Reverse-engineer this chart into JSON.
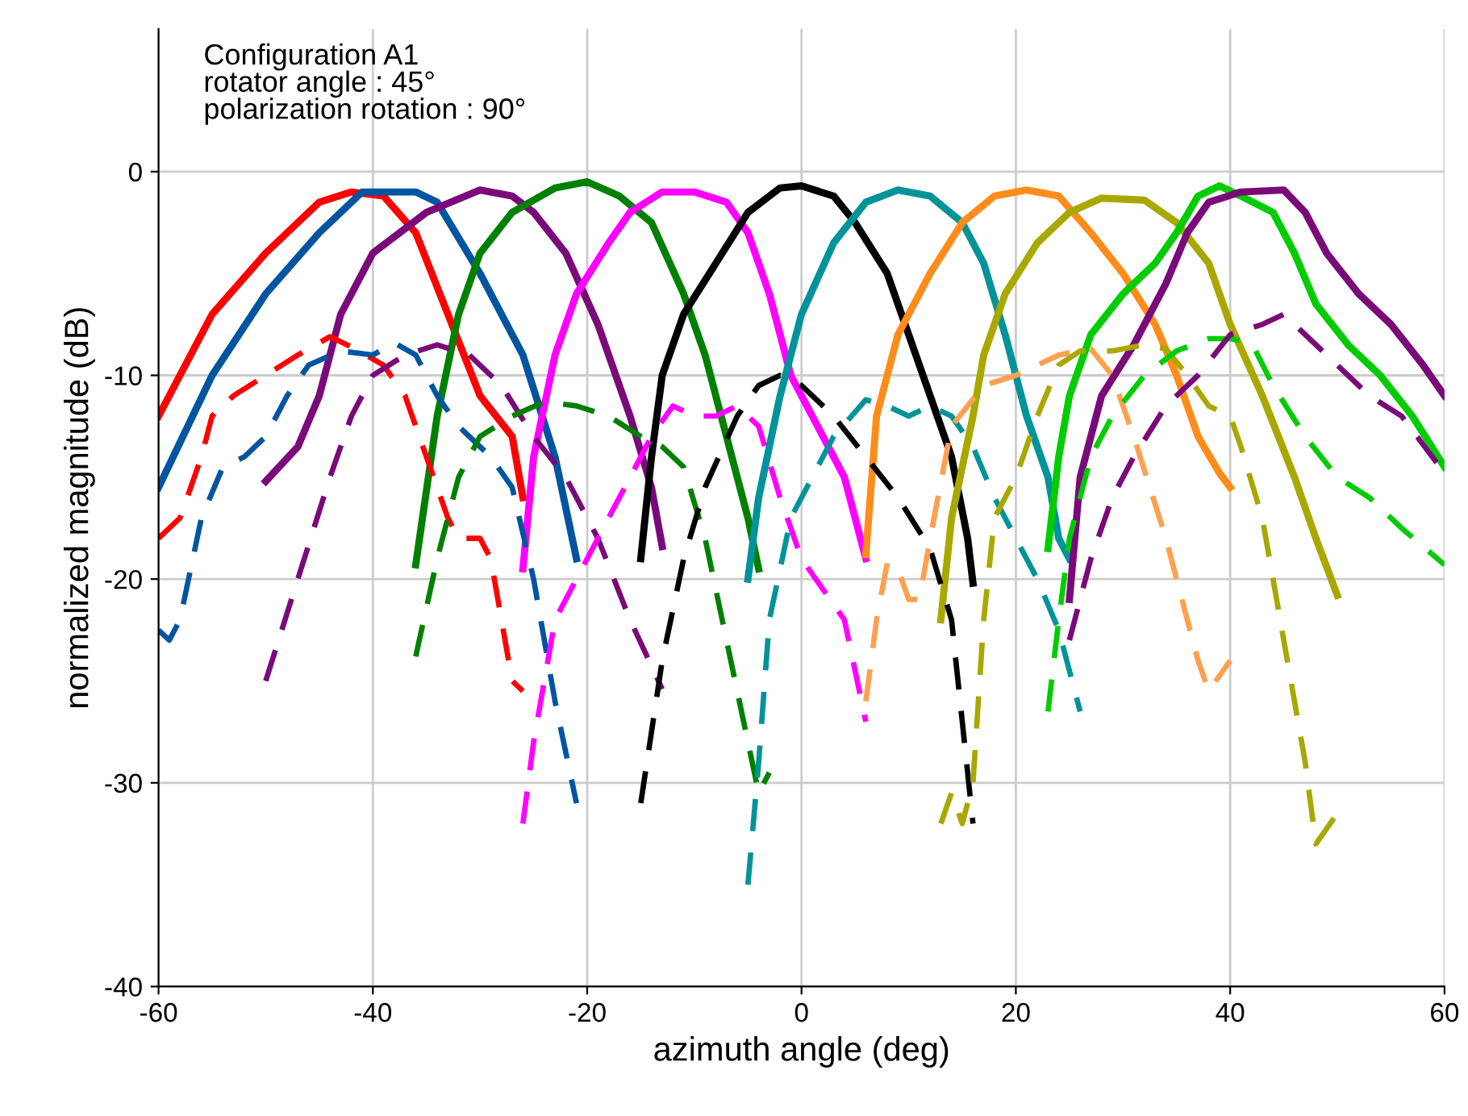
{
  "chart_data": {
    "type": "line",
    "xlabel": "azimuth angle (deg)",
    "ylabel": "normalized magnitude (dB)",
    "annotations": [
      "Configuration A1",
      "rotator angle : 45°",
      "polarization rotation : 90°"
    ],
    "xlim": [
      -60,
      60
    ],
    "xticks": [
      -60,
      -40,
      -20,
      0,
      20,
      40,
      60
    ],
    "ylim": [
      -40,
      7
    ],
    "yticks": [
      -40,
      -30,
      -20,
      -10,
      0
    ],
    "grid": true,
    "marker": "none",
    "series": [
      {
        "color": "#ff0000",
        "line_style": "solid",
        "x": [
          -60,
          -55,
          -50,
          -45,
          -42,
          -39,
          -36,
          -33,
          -30,
          -27,
          -26
        ],
        "values": [
          -12,
          -7,
          -4,
          -1.5,
          -1,
          -1.2,
          -3,
          -7,
          -11,
          -13,
          -16
        ]
      },
      {
        "color": "#0055a0",
        "line_style": "solid",
        "x": [
          -60,
          -55,
          -50,
          -45,
          -41,
          -36,
          -34,
          -30,
          -26,
          -23,
          -21
        ],
        "values": [
          -15.5,
          -10,
          -6,
          -3,
          -1,
          -1,
          -1.5,
          -5,
          -9,
          -14,
          -19
        ]
      },
      {
        "color": "#7a0a7a",
        "line_style": "solid",
        "x": [
          -50,
          -47,
          -45,
          -43,
          -40,
          -35,
          -30,
          -27,
          -25,
          -22,
          -19,
          -16,
          -14,
          -13
        ],
        "values": [
          -15.2,
          -13.5,
          -11,
          -7,
          -4,
          -2,
          -0.9,
          -1.2,
          -2,
          -4,
          -7.5,
          -12,
          -15.5,
          -18.4
        ]
      },
      {
        "color": "#008000",
        "line_style": "solid",
        "x": [
          -36,
          -34,
          -32,
          -30,
          -27,
          -23,
          -20,
          -17,
          -14,
          -11,
          -9,
          -7,
          -5,
          -4
        ],
        "values": [
          -19.3,
          -12,
          -7,
          -4,
          -2,
          -0.8,
          -0.5,
          -1.2,
          -2.5,
          -6,
          -9,
          -13,
          -17,
          -19.5
        ]
      },
      {
        "color": "#ff00ff",
        "line_style": "solid",
        "x": [
          -26,
          -25,
          -23,
          -21,
          -18,
          -16,
          -13,
          -10,
          -7,
          -5,
          -3,
          -1,
          2,
          4,
          6
        ],
        "values": [
          -19.5,
          -14,
          -9,
          -6,
          -3.5,
          -2,
          -1,
          -1,
          -1.5,
          -3,
          -6,
          -10,
          -13,
          -15,
          -19
        ]
      },
      {
        "color": "#000000",
        "line_style": "solid",
        "x": [
          -15,
          -14,
          -13,
          -11,
          -8,
          -5,
          -2,
          0,
          3,
          5,
          8,
          10,
          12,
          14,
          15.5,
          16
        ],
        "values": [
          -19,
          -14,
          -10,
          -7,
          -4.5,
          -2,
          -0.8,
          -0.7,
          -1.2,
          -2.5,
          -5,
          -8,
          -11,
          -14,
          -18,
          -20.2
        ]
      },
      {
        "color": "#00939a",
        "line_style": "solid",
        "x": [
          -5,
          -4,
          -2,
          0,
          3,
          6,
          9,
          12,
          15,
          17,
          19,
          21,
          23,
          24,
          25
        ],
        "values": [
          -20,
          -16,
          -11,
          -7,
          -3.5,
          -1.5,
          -0.9,
          -1.2,
          -2.5,
          -4.5,
          -8,
          -12,
          -15,
          -18,
          -19
        ]
      },
      {
        "color": "#ff8c1a",
        "line_style": "solid",
        "x": [
          6,
          7,
          9,
          12,
          15,
          18,
          21,
          24,
          27,
          30,
          33,
          35,
          37,
          39,
          40
        ],
        "values": [
          -18.8,
          -12,
          -8,
          -5,
          -2.5,
          -1.2,
          -0.9,
          -1.2,
          -3,
          -5,
          -7.5,
          -10,
          -13,
          -14.8,
          -15.5
        ]
      },
      {
        "color": "#a8a800",
        "line_style": "solid",
        "x": [
          13,
          14,
          16,
          17,
          19,
          22,
          25,
          28,
          32,
          35,
          38,
          40,
          43,
          46,
          48,
          50
        ],
        "values": [
          -22,
          -17,
          -12,
          -9,
          -6,
          -3.5,
          -2,
          -1.3,
          -1.4,
          -2.5,
          -4.5,
          -7.5,
          -11,
          -15,
          -18,
          -20.8
        ]
      },
      {
        "color": "#00cc00",
        "line_style": "solid",
        "x": [
          23,
          24,
          25,
          27,
          30,
          33,
          35,
          37,
          39,
          41,
          44,
          46,
          48,
          51,
          54,
          57,
          60
        ],
        "values": [
          -18.5,
          -14,
          -11,
          -8,
          -6,
          -4.5,
          -3,
          -1.2,
          -0.7,
          -1.2,
          -2,
          -4,
          -6.5,
          -8.5,
          -10,
          -12,
          -14.5
        ]
      },
      {
        "color": "#7a0a7a",
        "line_style": "solid",
        "x": [
          25,
          26,
          28,
          31,
          34,
          36,
          38,
          41,
          45,
          47,
          49,
          52,
          55,
          58,
          60
        ],
        "values": [
          -21,
          -15,
          -11,
          -8.5,
          -5.5,
          -3,
          -1.5,
          -1,
          -0.9,
          -2,
          -4,
          -6,
          -7.5,
          -9.5,
          -11
        ]
      },
      {
        "color": "#ff0000",
        "line_style": "dashed",
        "x": [
          -60,
          -58,
          -56,
          -55,
          -53,
          -50,
          -47,
          -44,
          -42,
          -39,
          -37,
          -35,
          -33,
          -32,
          -30,
          -29,
          -27,
          -26
        ],
        "values": [
          -18,
          -17,
          -14,
          -12,
          -11,
          -10,
          -9,
          -8.1,
          -8.6,
          -9.5,
          -11,
          -14,
          -17,
          -18,
          -18,
          -19,
          -25,
          -25.5
        ]
      },
      {
        "color": "#0055a0",
        "line_style": "dashed",
        "x": [
          -60,
          -59,
          -58,
          -56,
          -54,
          -52,
          -50,
          -48,
          -46,
          -43,
          -40,
          -38,
          -36,
          -34,
          -32,
          -29,
          -27,
          -25,
          -23,
          -21
        ],
        "values": [
          -22.5,
          -23,
          -22,
          -17,
          -14.5,
          -14,
          -13,
          -11,
          -9.5,
          -8.8,
          -9,
          -8.4,
          -9,
          -11,
          -12.5,
          -14,
          -15.5,
          -20,
          -26,
          -31
        ]
      },
      {
        "color": "#7a0a7a",
        "line_style": "dashed",
        "x": [
          -50,
          -47,
          -44,
          -42,
          -40,
          -37,
          -34,
          -31,
          -28,
          -25,
          -22,
          -19,
          -16,
          -13
        ],
        "values": [
          -25,
          -20,
          -15,
          -12,
          -10,
          -9,
          -8.5,
          -9,
          -10.5,
          -13,
          -15,
          -18,
          -22,
          -25.4
        ]
      },
      {
        "color": "#008000",
        "line_style": "dashed",
        "x": [
          -36,
          -34,
          -32,
          -30,
          -27,
          -24,
          -21,
          -18,
          -15,
          -13,
          -11,
          -9,
          -7,
          -5,
          -4,
          -3
        ],
        "values": [
          -23.8,
          -19,
          -15,
          -13,
          -12,
          -11.3,
          -11.5,
          -12,
          -13,
          -13.5,
          -14.5,
          -18,
          -23,
          -28,
          -30.5,
          -29.5
        ]
      },
      {
        "color": "#ff00ff",
        "line_style": "dashed",
        "x": [
          -26,
          -25,
          -23,
          -21,
          -18,
          -16,
          -14,
          -12,
          -10,
          -8,
          -6,
          -4,
          -2,
          0,
          2,
          4,
          6
        ],
        "values": [
          -32,
          -28,
          -22,
          -20,
          -17,
          -15,
          -13,
          -11.5,
          -12,
          -12,
          -11.5,
          -12.5,
          -16,
          -19,
          -20.5,
          -22,
          -27
        ]
      },
      {
        "color": "#000000",
        "line_style": "dashed",
        "x": [
          -15,
          -13,
          -11,
          -9,
          -6,
          -4,
          -2,
          0,
          3,
          6,
          9,
          12,
          14,
          15,
          16
        ],
        "values": [
          -31,
          -24,
          -19,
          -15.5,
          -12,
          -10.5,
          -10,
          -10.5,
          -12,
          -14,
          -16,
          -18.5,
          -22,
          -27,
          -32
        ]
      },
      {
        "color": "#00939a",
        "line_style": "dashed",
        "x": [
          -5,
          -4,
          -3,
          -1,
          1,
          3,
          6,
          8,
          10,
          12,
          14,
          16,
          18,
          20,
          22,
          24,
          26
        ],
        "values": [
          -35,
          -29,
          -22,
          -17,
          -15,
          -13,
          -11.2,
          -11.5,
          -12,
          -11.5,
          -12,
          -13.5,
          -16,
          -18,
          -20,
          -22.5,
          -26.5
        ]
      },
      {
        "color": "#ffa050",
        "line_style": "dashed",
        "x": [
          6,
          7,
          8,
          9,
          10,
          11,
          12,
          14,
          17,
          20,
          24,
          27,
          29,
          31,
          34,
          37,
          38,
          40
        ],
        "values": [
          -26,
          -22,
          -19.2,
          -19.5,
          -21,
          -21,
          -18,
          -12.5,
          -10.5,
          -10,
          -9,
          -8.7,
          -10,
          -13,
          -18,
          -24,
          -25.5,
          -24
        ]
      },
      {
        "color": "#a8a800",
        "line_style": "dashed",
        "x": [
          13,
          14,
          15,
          16,
          17,
          18,
          20,
          22,
          24,
          26,
          29,
          32,
          34,
          36,
          38,
          40,
          41,
          43,
          45,
          47,
          48,
          50
        ],
        "values": [
          -32,
          -30.5,
          -32,
          -30,
          -22,
          -17,
          -15,
          -12,
          -9.5,
          -8.8,
          -8.8,
          -8.5,
          -8.7,
          -10,
          -11.5,
          -12,
          -13.5,
          -17,
          -23,
          -29,
          -33,
          -31.5
        ]
      },
      {
        "color": "#00cc00",
        "line_style": "dashed",
        "x": [
          23,
          24,
          25,
          27,
          29,
          32,
          35,
          38,
          40,
          42,
          44,
          47,
          50,
          53,
          56,
          60
        ],
        "values": [
          -26.5,
          -22,
          -18,
          -14,
          -12,
          -10,
          -8.8,
          -8.2,
          -8.2,
          -8.4,
          -10.5,
          -13,
          -15,
          -16,
          -17.5,
          -19.3
        ]
      },
      {
        "color": "#7a0a7a",
        "line_style": "dashed",
        "x": [
          25,
          27,
          29,
          31,
          34,
          37,
          40,
          43,
          45,
          47,
          49,
          51,
          53,
          56,
          60
        ],
        "values": [
          -23,
          -19,
          -16,
          -14,
          -11.5,
          -10,
          -8,
          -7.5,
          -7,
          -8,
          -9,
          -10,
          -11,
          -12,
          -14.8
        ]
      }
    ]
  }
}
